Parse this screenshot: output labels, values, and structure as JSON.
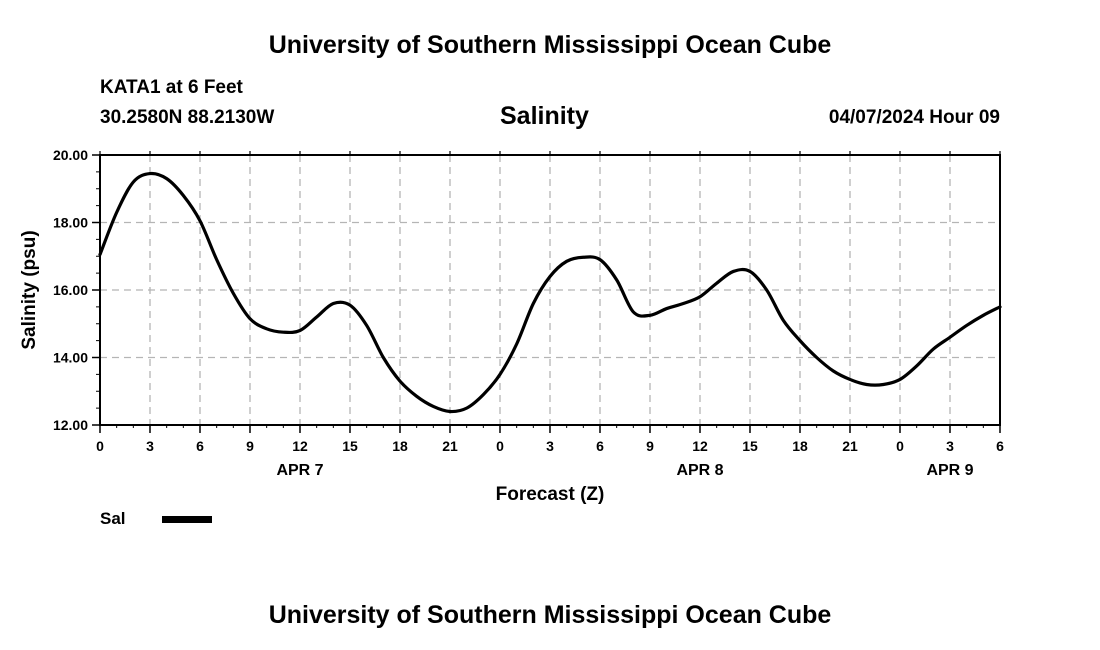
{
  "header": {
    "title": "University of Southern Mississippi Ocean Cube",
    "station": "KATA1 at 6 Feet",
    "coords": "30.2580N  88.2130W",
    "variable": "Salinity",
    "datetime": "04/07/2024 Hour 09"
  },
  "footer": {
    "title": "University of Southern Mississippi Ocean Cube"
  },
  "chart_data": {
    "type": "line",
    "title": "Salinity",
    "xlabel": "Forecast (Z)",
    "ylabel": "Salinity (psu)",
    "ylim": [
      12.0,
      20.0
    ],
    "yticks": [
      "12.00",
      "14.00",
      "16.00",
      "18.00",
      "20.00"
    ],
    "yticks_values": [
      12,
      14,
      16,
      18,
      20
    ],
    "xlim": [
      0,
      54
    ],
    "xticks": [
      "0",
      "3",
      "6",
      "9",
      "12",
      "15",
      "18",
      "21",
      "0",
      "3",
      "6",
      "9",
      "12",
      "15",
      "18",
      "21",
      "0",
      "3",
      "6"
    ],
    "date_labels": [
      {
        "label": "APR 7",
        "at_hour": 12
      },
      {
        "label": "APR 8",
        "at_hour": 36
      },
      {
        "label": "APR 9",
        "at_hour": 51
      }
    ],
    "grid": true,
    "legend": {
      "placement": "bottom-left",
      "entries": [
        {
          "name": "Sal",
          "color": "#000000"
        }
      ]
    },
    "series": [
      {
        "name": "Sal",
        "color": "#000000",
        "x": [
          0,
          1,
          2,
          3,
          4,
          5,
          6,
          7,
          8,
          9,
          10,
          11,
          12,
          13,
          14,
          15,
          16,
          17,
          18,
          19,
          20,
          21,
          22,
          23,
          24,
          25,
          26,
          27,
          28,
          29,
          30,
          31,
          32,
          33,
          34,
          35,
          36,
          37,
          38,
          39,
          40,
          41,
          42,
          43,
          44,
          45,
          46,
          47,
          48,
          49,
          50,
          51,
          52,
          53,
          54
        ],
        "values": [
          17.05,
          18.3,
          19.2,
          19.45,
          19.3,
          18.8,
          18.05,
          16.9,
          15.9,
          15.15,
          14.85,
          14.75,
          14.8,
          15.2,
          15.6,
          15.55,
          14.95,
          14.0,
          13.3,
          12.85,
          12.55,
          12.4,
          12.5,
          12.9,
          13.5,
          14.4,
          15.6,
          16.4,
          16.85,
          16.97,
          16.9,
          16.3,
          15.35,
          15.25,
          15.45,
          15.6,
          15.8,
          16.2,
          16.55,
          16.55,
          16.0,
          15.1,
          14.5,
          14.0,
          13.6,
          13.35,
          13.2,
          13.2,
          13.35,
          13.75,
          14.25,
          14.6,
          14.95,
          15.25,
          15.5
        ]
      }
    ]
  }
}
